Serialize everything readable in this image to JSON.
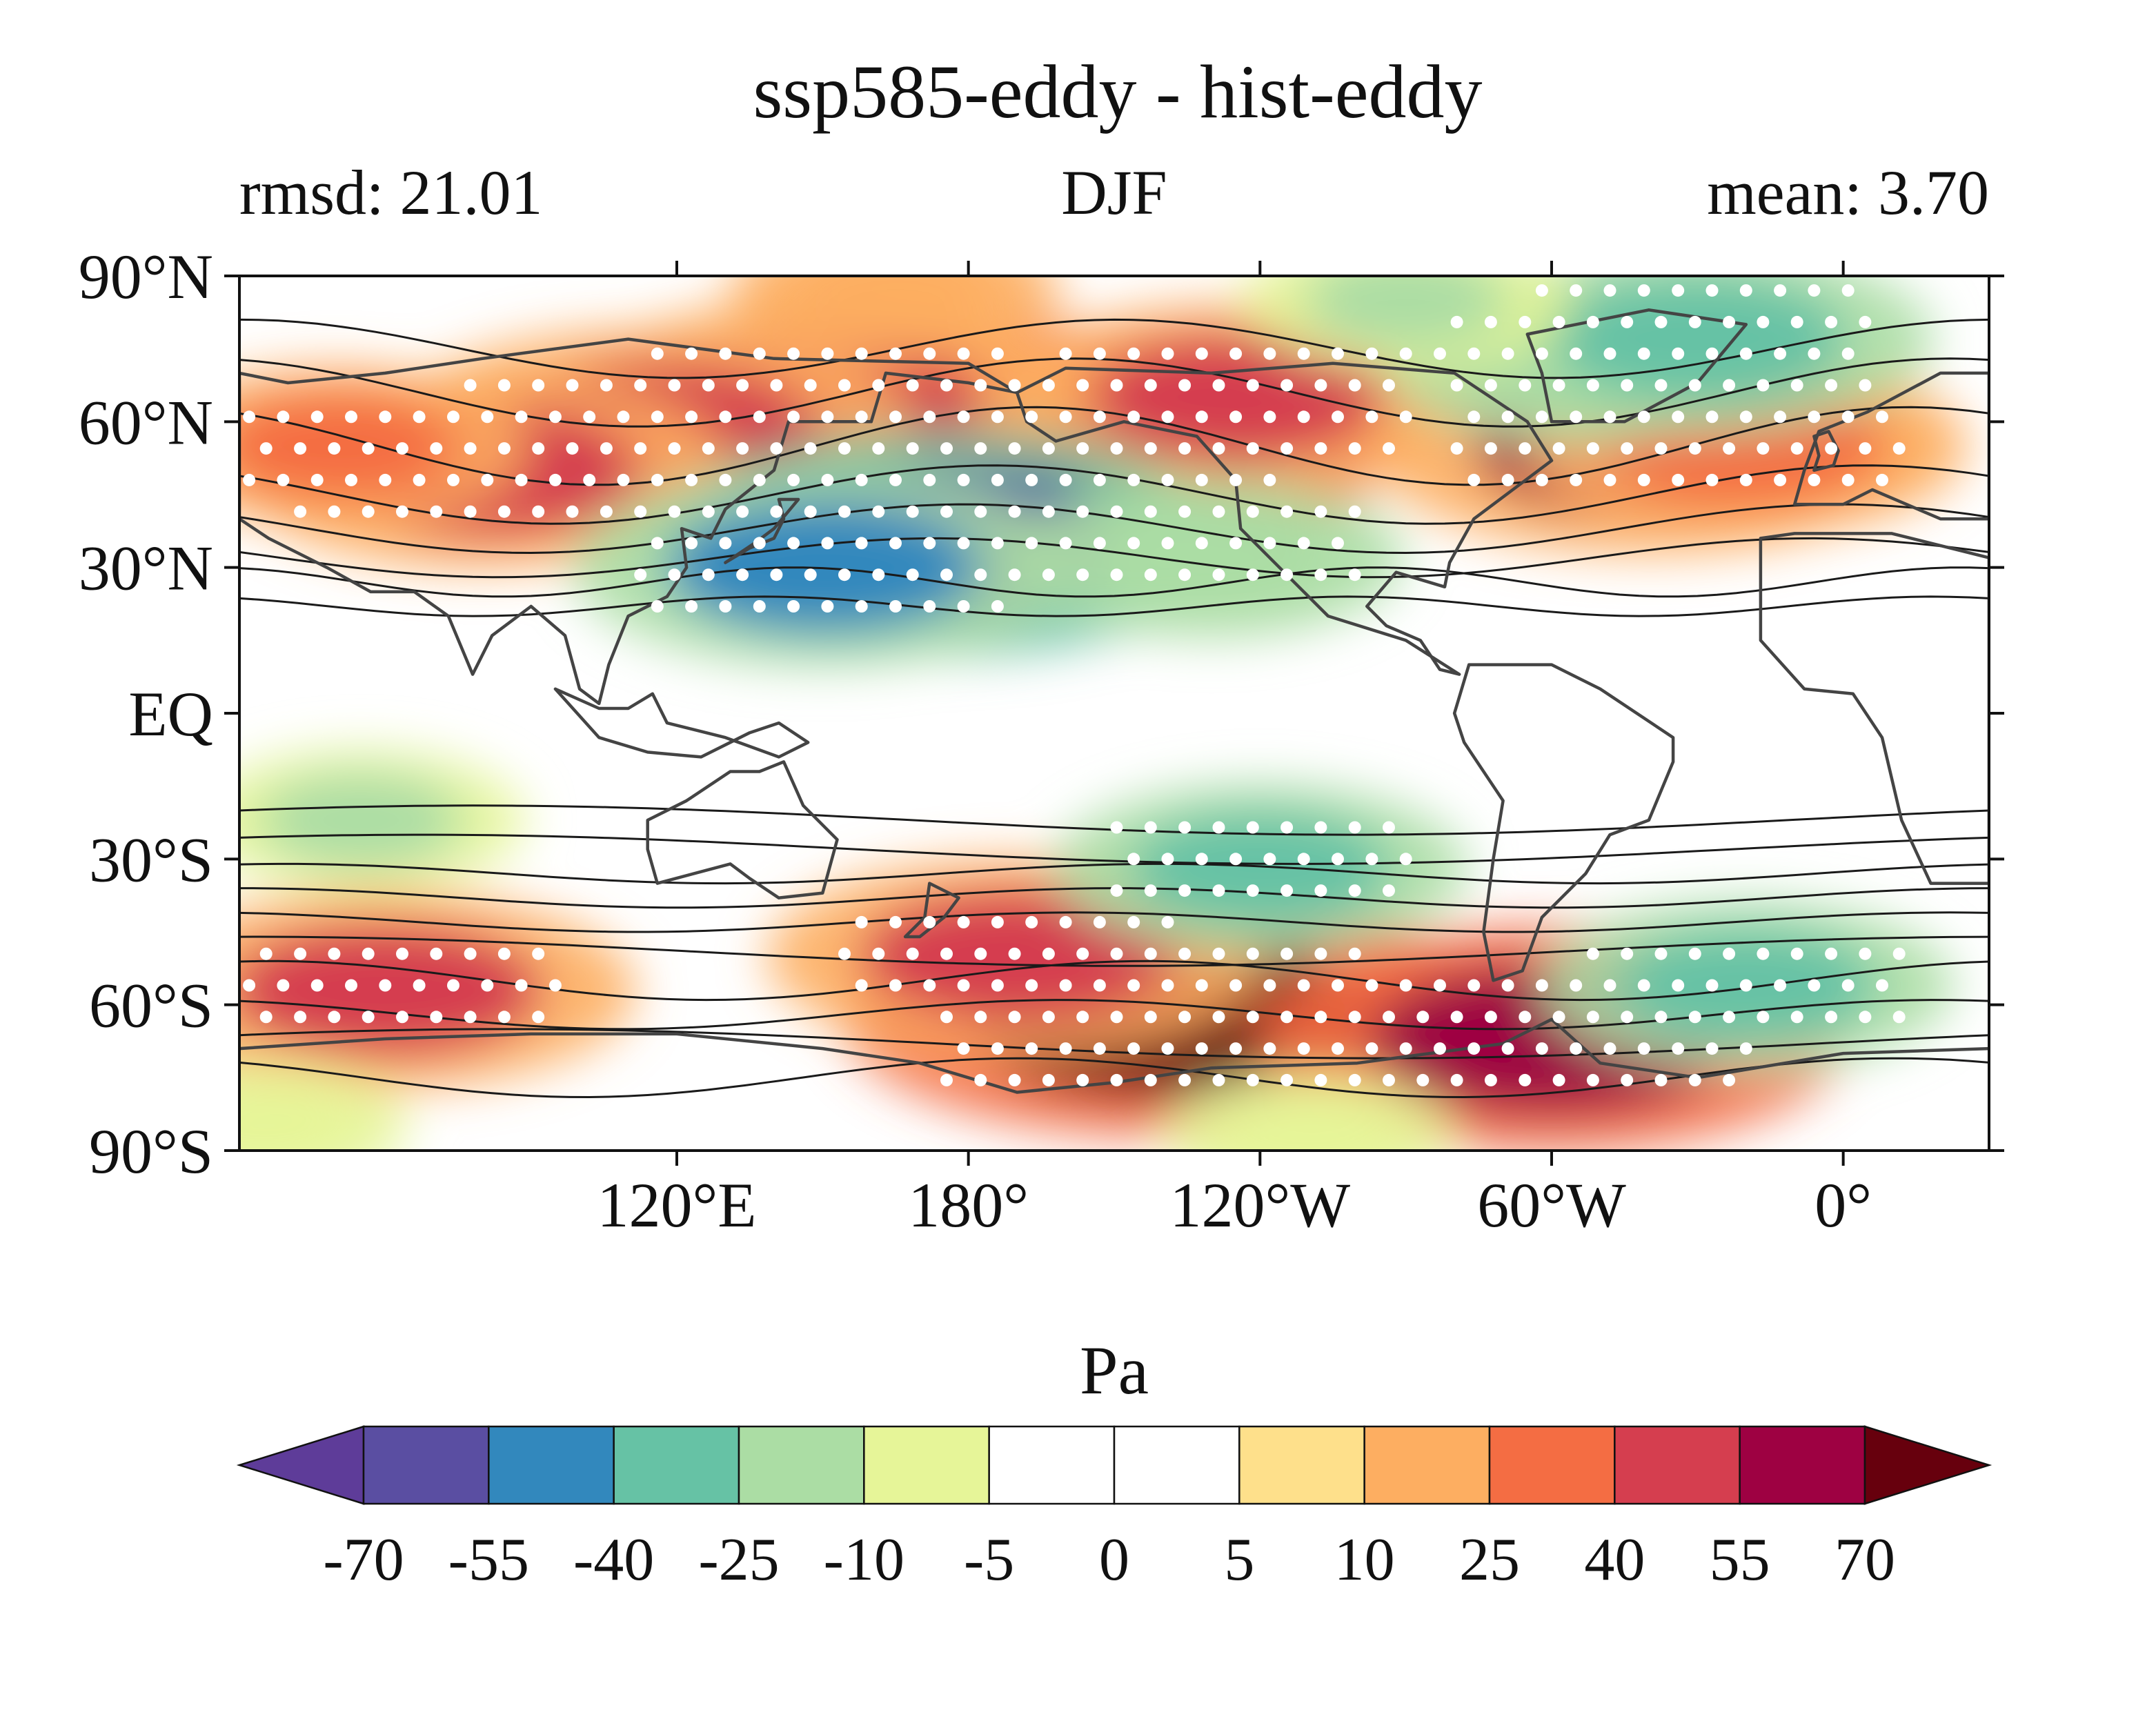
{
  "title": "ssp585-eddy - hist-eddy",
  "left_label": "rmsd: 21.01",
  "center_label": "DJF",
  "right_label": "mean: 3.70",
  "colorbar": {
    "unit": "Pa",
    "levels": [
      "-70",
      "-55",
      "-40",
      "-25",
      "-10",
      "-5",
      "0",
      "5",
      "10",
      "25",
      "40",
      "55",
      "70"
    ],
    "colors": [
      "#5e3c99",
      "#5a4ea2",
      "#3288bd",
      "#66c2a5",
      "#abdda4",
      "#e6f598",
      "#ffffff",
      "#ffffff",
      "#fee08b",
      "#fdae61",
      "#f46d43",
      "#d53e4f",
      "#9e0142",
      "#67000d"
    ]
  },
  "chart_data": {
    "type": "heatmap",
    "title": "ssp585-eddy - hist-eddy",
    "projection": "equirectangular, centered on 150°W",
    "xlim": [
      30,
      390
    ],
    "ylim": [
      -90,
      90
    ],
    "xticks": [
      {
        "lon": 120,
        "label": "120°E"
      },
      {
        "lon": 180,
        "label": "180°"
      },
      {
        "lon": 240,
        "label": "120°W"
      },
      {
        "lon": 300,
        "label": "60°W"
      },
      {
        "lon": 360,
        "label": "0°"
      }
    ],
    "yticks": [
      {
        "lat": 90,
        "label": "90°N"
      },
      {
        "lat": 60,
        "label": "60°N"
      },
      {
        "lat": 30,
        "label": "30°N"
      },
      {
        "lat": 0,
        "label": "EQ"
      },
      {
        "lat": -30,
        "label": "30°S"
      },
      {
        "lat": -60,
        "label": "60°S"
      },
      {
        "lat": -90,
        "label": "90°S"
      }
    ],
    "unit": "Pa",
    "overlays": [
      "stippling (white dots) for significance",
      "black climatology contours",
      "coastlines"
    ],
    "features": [
      {
        "lon": 200,
        "lat": 55,
        "value": 70
      },
      {
        "lon": 170,
        "lat": 52,
        "value": 60
      },
      {
        "lon": 150,
        "lat": 65,
        "value": 45
      },
      {
        "lon": 115,
        "lat": 58,
        "value": 50
      },
      {
        "lon": 80,
        "lat": 50,
        "value": 45
      },
      {
        "lon": 235,
        "lat": 65,
        "value": 40
      },
      {
        "lon": 320,
        "lat": 55,
        "value": 55
      },
      {
        "lon": 340,
        "lat": 55,
        "value": 35
      },
      {
        "lon": 50,
        "lat": 55,
        "value": 25
      },
      {
        "lon": 165,
        "lat": 87,
        "value": 15
      },
      {
        "lon": 175,
        "lat": 35,
        "value": -60
      },
      {
        "lon": 150,
        "lat": 30,
        "value": -45
      },
      {
        "lon": 230,
        "lat": 32,
        "value": -25
      },
      {
        "lon": 305,
        "lat": 72,
        "value": -25
      },
      {
        "lon": 330,
        "lat": 77,
        "value": -40
      },
      {
        "lon": 270,
        "lat": 85,
        "value": -15
      },
      {
        "lon": 220,
        "lat": -62,
        "value": 70
      },
      {
        "lon": 190,
        "lat": -50,
        "value": 45
      },
      {
        "lon": 300,
        "lat": -67,
        "value": 60
      },
      {
        "lon": 60,
        "lat": -57,
        "value": 45
      },
      {
        "lon": 240,
        "lat": -32,
        "value": -30
      },
      {
        "lon": 340,
        "lat": -56,
        "value": -30
      },
      {
        "lon": 55,
        "lat": -22,
        "value": -15
      },
      {
        "lon": 35,
        "lat": -85,
        "value": -8
      },
      {
        "lon": 250,
        "lat": -87,
        "value": -8
      }
    ]
  }
}
